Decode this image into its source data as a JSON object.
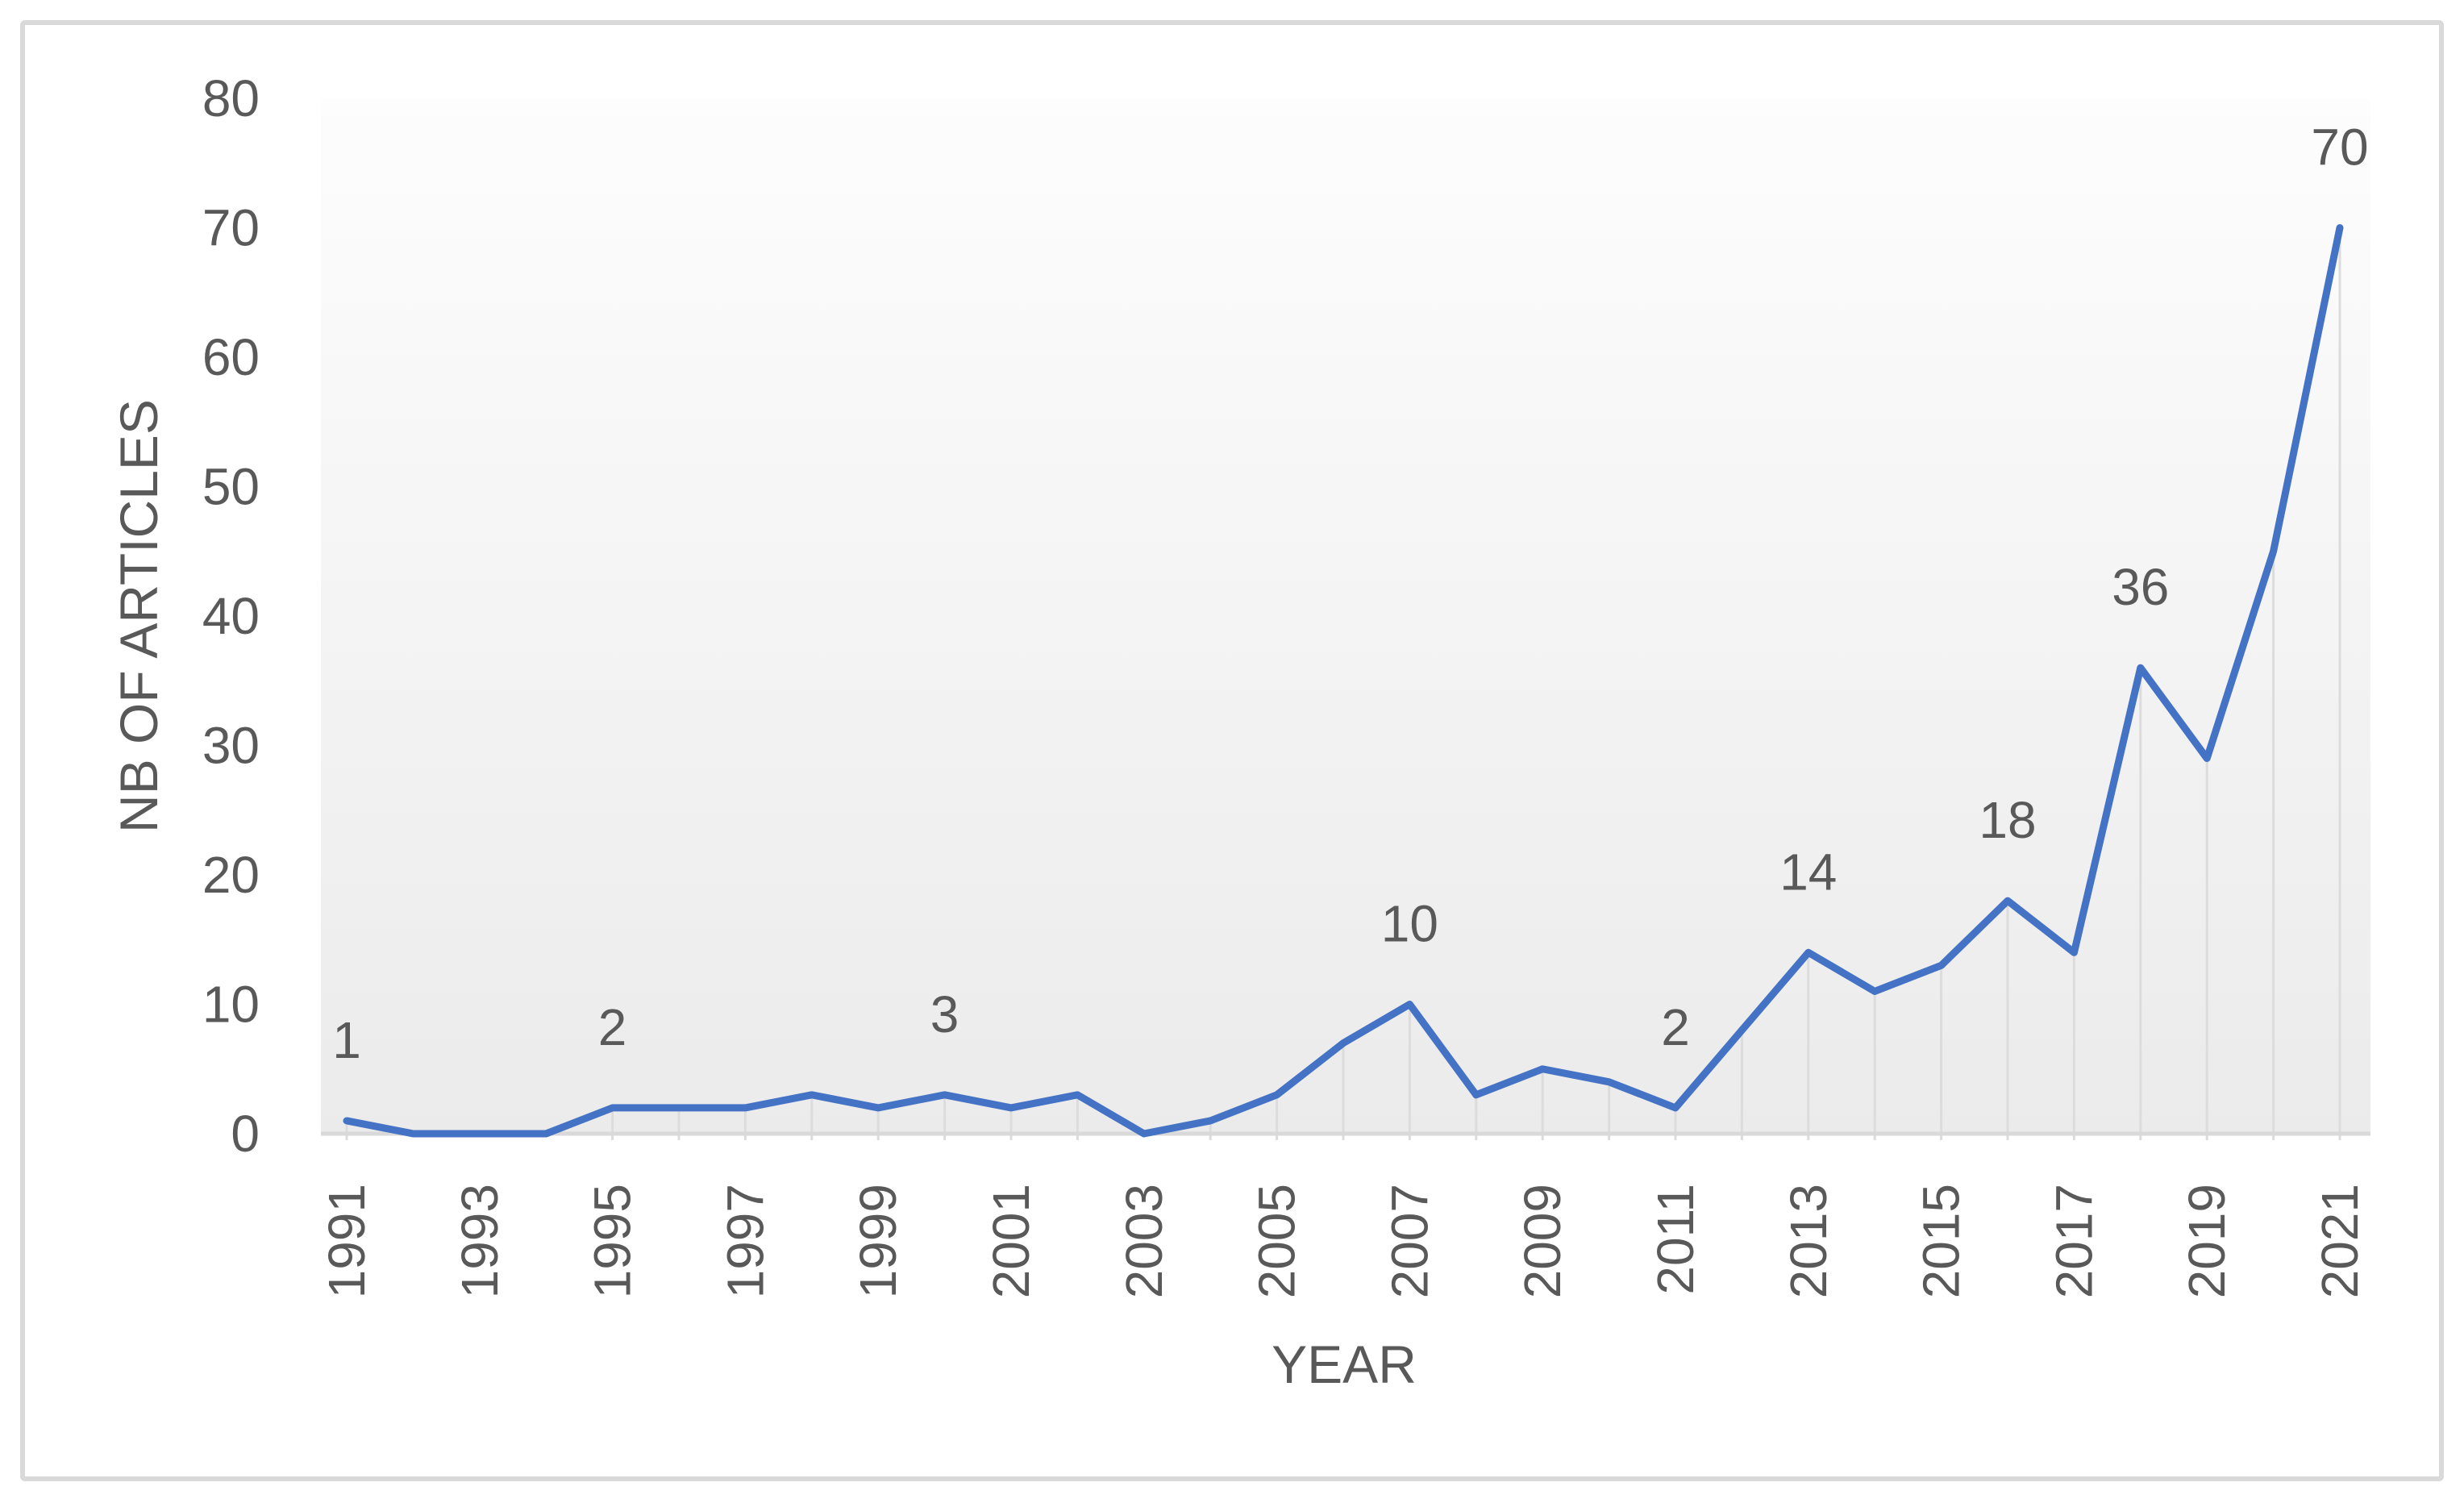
{
  "figure": {
    "border_color": "#d9d9d9",
    "background_color": "#ffffff"
  },
  "chart_data": {
    "type": "line",
    "title": "",
    "xlabel": "YEAR",
    "ylabel": "NB OF ARTICLES",
    "x": [
      1991,
      1992,
      1993,
      1994,
      1995,
      1996,
      1997,
      1998,
      1999,
      2000,
      2001,
      2002,
      2003,
      2004,
      2005,
      2006,
      2007,
      2008,
      2009,
      2010,
      2011,
      2012,
      2013,
      2014,
      2015,
      2016,
      2017,
      2018,
      2019,
      2020,
      2021
    ],
    "series": [
      {
        "name": "Number of articles",
        "values": [
          1,
          0,
          0,
          0,
          2,
          2,
          2,
          3,
          2,
          3,
          2,
          3,
          0,
          1,
          3,
          7,
          10,
          3,
          5,
          4,
          2,
          8,
          14,
          11,
          13,
          18,
          14,
          36,
          29,
          45,
          70
        ]
      }
    ],
    "data_labels": [
      {
        "year": 1991,
        "text": "1"
      },
      {
        "year": 1995,
        "text": "2"
      },
      {
        "year": 2000,
        "text": "3"
      },
      {
        "year": 2007,
        "text": "10"
      },
      {
        "year": 2011,
        "text": "2"
      },
      {
        "year": 2013,
        "text": "14"
      },
      {
        "year": 2016,
        "text": "18"
      },
      {
        "year": 2018,
        "text": "36"
      },
      {
        "year": 2021,
        "text": "70"
      }
    ],
    "x_tick_labels": [
      "1991",
      "1993",
      "1995",
      "1997",
      "1999",
      "2001",
      "2003",
      "2005",
      "2007",
      "2009",
      "2011",
      "2013",
      "2015",
      "2017",
      "2019",
      "2021"
    ],
    "y_ticks": [
      0,
      10,
      20,
      30,
      40,
      50,
      60,
      70,
      80
    ],
    "ylim": [
      0,
      80
    ],
    "xlim": [
      1991,
      2021
    ],
    "grid": "none",
    "legend_position": "none",
    "drop_lines": true,
    "line_color": "#4472c4",
    "text_color": "#595959",
    "axis_line_color": "#d9d9d9",
    "drop_line_color": "#dcdcdc",
    "plot_bg_top": "#fdfdfd",
    "plot_bg_bottom": "#ebebeb"
  }
}
